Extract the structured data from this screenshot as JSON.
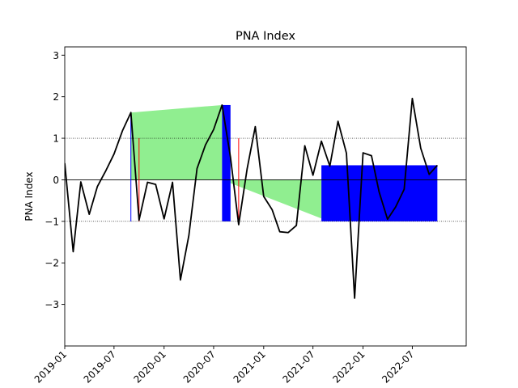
{
  "chart_data": {
    "type": "line",
    "title": "PNA Index",
    "xlabel": "",
    "ylabel": "PNA Index",
    "xlim": [
      "2019-01-01",
      "2023-01-15"
    ],
    "ylim": [
      -4,
      3.2
    ],
    "x_ticks": [
      "2019-01",
      "2019-07",
      "2020-01",
      "2020-07",
      "2021-01",
      "2021-07",
      "2022-01",
      "2022-07"
    ],
    "y_ticks": [
      -3,
      -2,
      -1,
      0,
      1,
      2,
      3
    ],
    "y_tick_labels": [
      "−3",
      "−2",
      "−1",
      "0",
      "1",
      "2",
      "3"
    ],
    "grid": false,
    "reference_lines": [
      {
        "y": 1,
        "style": "dotted",
        "color": "#000000"
      },
      {
        "y": 0,
        "style": "solid",
        "color": "#000000"
      },
      {
        "y": -1,
        "style": "dotted",
        "color": "#000000"
      }
    ],
    "series": [
      {
        "type": "line",
        "color": "#000000",
        "x": [
          "2019-01",
          "2019-02",
          "2019-03",
          "2019-04",
          "2019-05",
          "2019-06",
          "2019-07",
          "2019-08",
          "2019-09",
          "2019-10",
          "2019-11",
          "2019-12",
          "2020-01",
          "2020-02",
          "2020-03",
          "2020-04",
          "2020-05",
          "2020-06",
          "2020-07",
          "2020-08",
          "2020-09",
          "2020-10",
          "2020-11",
          "2020-12",
          "2021-01",
          "2021-02",
          "2021-03",
          "2021-04",
          "2021-05",
          "2021-06",
          "2021-07",
          "2021-08",
          "2021-09",
          "2021-10",
          "2021-11",
          "2021-12",
          "2022-01",
          "2022-02",
          "2022-03",
          "2022-04",
          "2022-05",
          "2022-06",
          "2022-07",
          "2022-08",
          "2022-09",
          "2022-10"
        ],
        "values": [
          0.4,
          -1.73,
          -0.05,
          -0.83,
          -0.16,
          0.22,
          0.62,
          1.18,
          1.62,
          -0.97,
          -0.06,
          -0.11,
          -0.94,
          -0.06,
          -2.41,
          -1.34,
          0.27,
          0.84,
          1.21,
          1.8,
          0.54,
          -1.08,
          0.26,
          1.28,
          -0.4,
          -0.72,
          -1.25,
          -1.27,
          -1.1,
          0.82,
          0.11,
          0.93,
          0.33,
          1.41,
          0.64,
          -2.85,
          0.65,
          0.58,
          -0.29,
          -0.95,
          -0.65,
          -0.23,
          1.96,
          0.76,
          0.13,
          0.35
        ]
      }
    ],
    "fill_between": [
      {
        "color": "#90ee90",
        "x": [
          "2019-09",
          "2020-08"
        ],
        "y1": [
          1.62,
          1.8
        ],
        "y2": [
          0,
          0
        ],
        "where": "y1>y2",
        "interpolate": true
      },
      {
        "color": "#90ee90",
        "x": [
          "2020-08",
          "2021-08"
        ],
        "y1": [
          1.8,
          0.93
        ],
        "y2": [
          0,
          0
        ],
        "where": "y1<y2",
        "interpolate": true
      }
    ],
    "filled_rects": [
      {
        "color": "#0000ff",
        "x": [
          "2020-08",
          "2020-09"
        ],
        "y": [
          -1,
          1.8
        ]
      },
      {
        "color": "#0000ff",
        "x": [
          "2021-08",
          "2022-10"
        ],
        "y": [
          -1,
          0.35
        ]
      }
    ],
    "vlines": [
      {
        "color": "#0000ff",
        "x": "2019-09",
        "y": [
          -1,
          1.62
        ]
      },
      {
        "color": "#ff0000",
        "x": "2019-10",
        "y": [
          -1,
          1
        ]
      },
      {
        "color": "#ff0000",
        "x": "2020-10",
        "y": [
          -1,
          1
        ]
      }
    ]
  }
}
